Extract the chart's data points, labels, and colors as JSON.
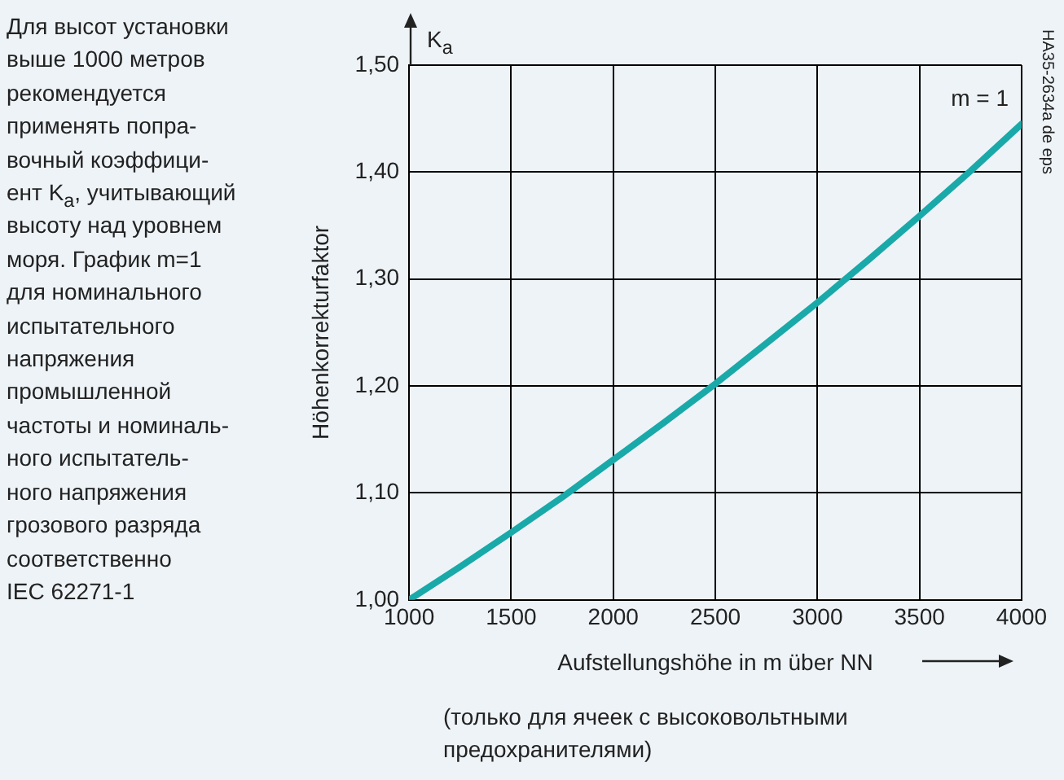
{
  "chart_data": {
    "type": "line",
    "xlabel": "Aufstellungshöhe in m über NN",
    "ylabel": "Höhenkorrekturfaktor",
    "x": [
      1000,
      1250,
      1500,
      1750,
      2000,
      2250,
      2500,
      2750,
      3000,
      3250,
      3500,
      3750,
      4000
    ],
    "series": [
      {
        "name": "m = 1",
        "color": "#1aa9a9",
        "values": [
          1.0,
          1.031,
          1.063,
          1.096,
          1.131,
          1.166,
          1.202,
          1.24,
          1.278,
          1.318,
          1.359,
          1.401,
          1.445
        ]
      }
    ],
    "xlim": [
      1000,
      4000
    ],
    "xticks": [
      1000,
      1500,
      2000,
      2500,
      3000,
      3500,
      4000
    ],
    "ylim": [
      1.0,
      1.5
    ],
    "yticks": [
      {
        "value": 1.0,
        "label": "1,00"
      },
      {
        "value": 1.1,
        "label": "1,10"
      },
      {
        "value": 1.2,
        "label": "1,20"
      },
      {
        "value": 1.3,
        "label": "1,30"
      },
      {
        "value": 1.4,
        "label": "1,40"
      },
      {
        "value": 1.5,
        "label": "1,50"
      }
    ],
    "grid": true,
    "legend": false,
    "marker": "none",
    "line_style": "solid",
    "annotations": [
      "Для высот установки\nвыше 1000 метров\nрекомендуется\nприменять попра-\nвочный коэффици-\nент K$_{a}$, учитывающий\nвысоту над уровнем\nморя. График m=1\nдля номинального\nиспытательного\nнапряжения\nпромышленной\nчастоты и номиналь-\nного испытатель-\nного напряжения\nгрозового разряда\nсоответственно\nIEC 62271-1",
      "K$_{a}$",
      "HA35-2634a de eps",
      "(только для ячеек с высоковольтными\nпредохранителями)"
    ]
  }
}
